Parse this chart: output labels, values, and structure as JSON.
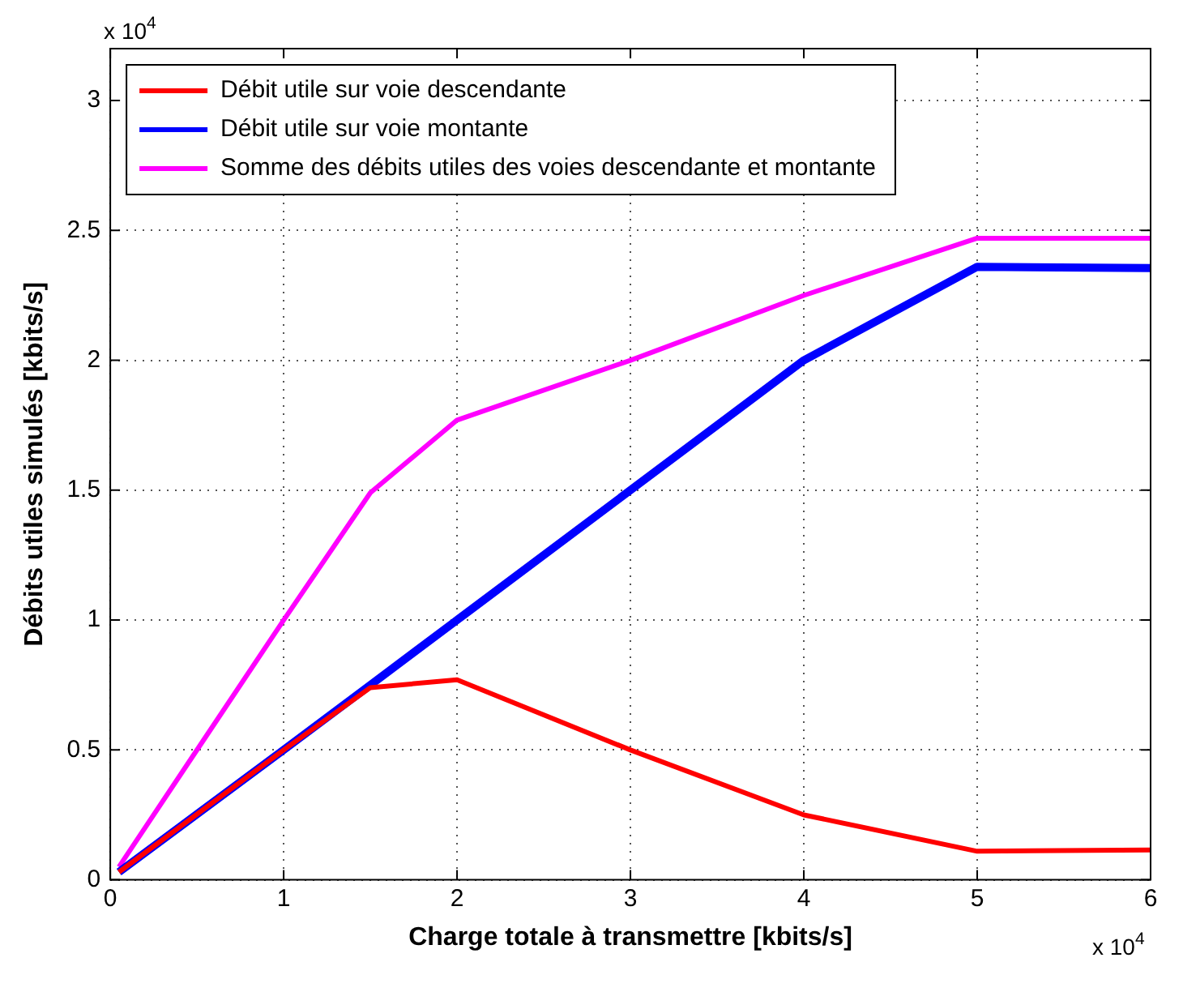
{
  "chart_data": {
    "type": "line",
    "xlabel": "Charge totale à transmettre [kbits/s]",
    "ylabel": "Débits utiles simulés [kbits/s]",
    "x": [
      0.05,
      1,
      1.5,
      2,
      3,
      4,
      5,
      6
    ],
    "series": [
      {
        "name": "Débit utile sur voie descendante",
        "color": "#ff0000",
        "values": [
          0.03,
          0.5,
          0.74,
          0.77,
          0.5,
          0.25,
          0.11,
          0.115
        ]
      },
      {
        "name": "Débit utile sur voie montante",
        "color": "#0000ff",
        "values": [
          0.03,
          0.5,
          0.75,
          1.0,
          1.5,
          2.0,
          2.36,
          2.355
        ]
      },
      {
        "name": "Somme des débits utiles des voies descendante et montante",
        "color": "#ff00ff",
        "values": [
          0.05,
          1.0,
          1.49,
          1.77,
          2.0,
          2.25,
          2.47,
          2.47
        ]
      }
    ],
    "xlim": [
      0,
      6
    ],
    "xticks": [
      0,
      1,
      2,
      3,
      4,
      5,
      6
    ],
    "ylim": [
      0,
      3.2
    ],
    "yticks": [
      0,
      0.5,
      1,
      1.5,
      2,
      2.5,
      3
    ],
    "grid": true,
    "legend": "top left",
    "marker": "none",
    "line_style": "solid",
    "annotations": [
      "x 10$^{4}$",
      "x 10$^{4}$"
    ]
  }
}
